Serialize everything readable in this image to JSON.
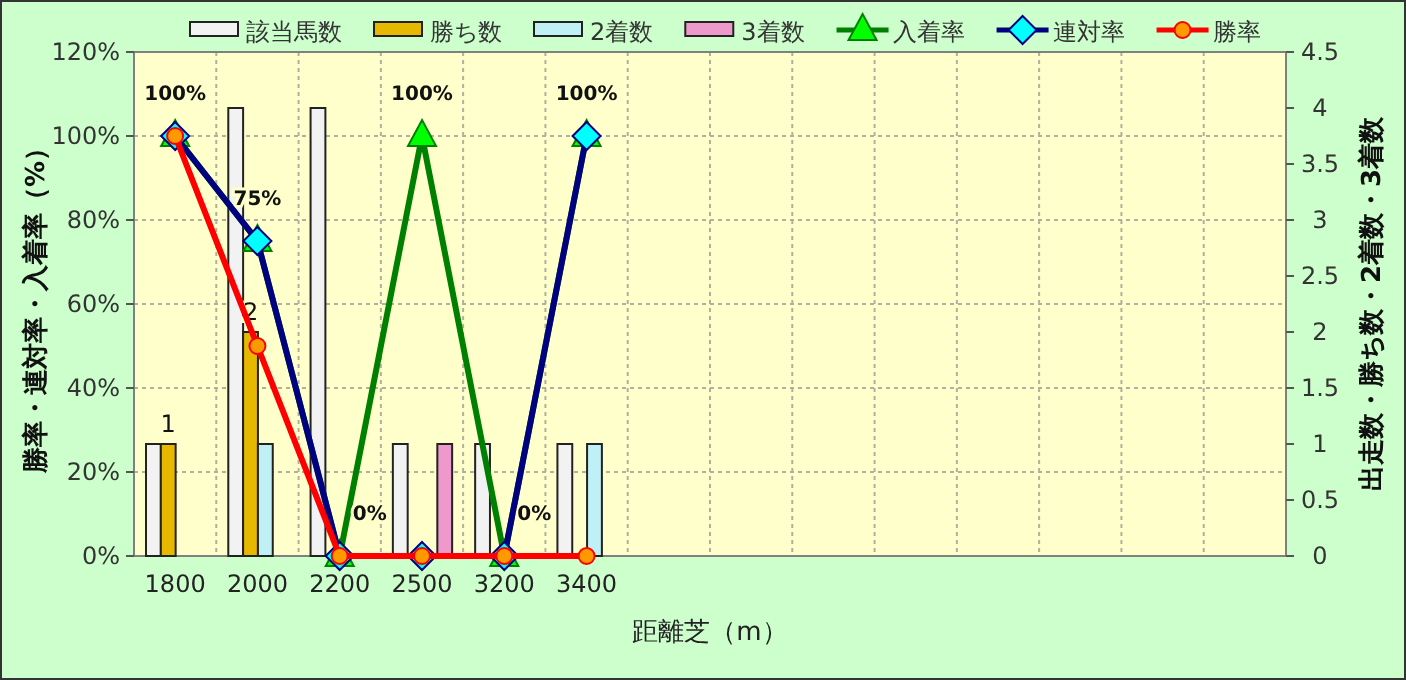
{
  "chart_data": {
    "type": "bar",
    "xlabel": "距離芝（m）",
    "ylabel": "勝率・連対率・入着率（%）",
    "y2label": "出走数・勝ち数・2着数・3着数",
    "categories": [
      "1800",
      "2000",
      "2200",
      "2500",
      "3200",
      "3400",
      null,
      null,
      null,
      null,
      null,
      null,
      null,
      null
    ],
    "ylim": [
      0,
      120
    ],
    "yticks": [
      {
        "value": 0,
        "label": "0%"
      },
      {
        "value": 20,
        "label": "20%"
      },
      {
        "value": 40,
        "label": "40%"
      },
      {
        "value": 60,
        "label": "60%"
      },
      {
        "value": 80,
        "label": "80%"
      },
      {
        "value": 100,
        "label": "100%"
      },
      {
        "value": 120,
        "label": "120%"
      }
    ],
    "y2lim": [
      0,
      4.5
    ],
    "y2ticks": [
      0,
      0.5,
      1,
      1.5,
      2,
      2.5,
      3,
      3.5,
      4,
      4.5
    ],
    "grid": true,
    "legend": "top",
    "series": [
      {
        "name": "該当馬数",
        "axis": "y2",
        "color": "#f2f2f2",
        "values": [
          1,
          4,
          4,
          1,
          1,
          1,
          null,
          null,
          null,
          null,
          null,
          null,
          null,
          null
        ]
      },
      {
        "name": "勝ち数",
        "axis": "y2",
        "color": "#e6b800",
        "values": [
          1,
          2,
          0,
          0,
          0,
          0,
          null,
          null,
          null,
          null,
          null,
          null,
          null,
          null
        ],
        "value_labels": [
          "1",
          "2",
          null,
          null,
          null,
          null,
          null,
          null,
          null,
          null,
          null,
          null,
          null,
          null
        ]
      },
      {
        "name": "2着数",
        "axis": "y2",
        "color": "#bff0f5",
        "values": [
          0,
          1,
          0,
          0,
          0,
          1,
          null,
          null,
          null,
          null,
          null,
          null,
          null,
          null
        ]
      },
      {
        "name": "3着数",
        "axis": "y2",
        "color": "#ee99cc",
        "values": [
          0,
          0,
          0,
          1,
          0,
          0,
          null,
          null,
          null,
          null,
          null,
          null,
          null,
          null
        ]
      },
      {
        "name": "入着率",
        "type": "line",
        "color": "#008000",
        "marker": "triangle",
        "values": [
          100,
          75,
          0,
          100,
          0,
          100,
          null,
          null,
          null,
          null,
          null,
          null,
          null,
          null
        ],
        "value_labels": [
          "100%",
          "75%",
          "0%",
          "100%",
          "0%",
          "100%",
          null,
          null,
          null,
          null,
          null,
          null,
          null,
          null
        ]
      },
      {
        "name": "連対率",
        "type": "line",
        "color": "#000080",
        "marker": "diamond",
        "values": [
          100,
          75,
          0,
          0,
          0,
          100,
          null,
          null,
          null,
          null,
          null,
          null,
          null,
          null
        ]
      },
      {
        "name": "勝率",
        "type": "line",
        "color": "#ff0000",
        "marker": "circle",
        "values": [
          100,
          50,
          0,
          0,
          0,
          0,
          null,
          null,
          null,
          null,
          null,
          null,
          null,
          null
        ]
      }
    ]
  }
}
